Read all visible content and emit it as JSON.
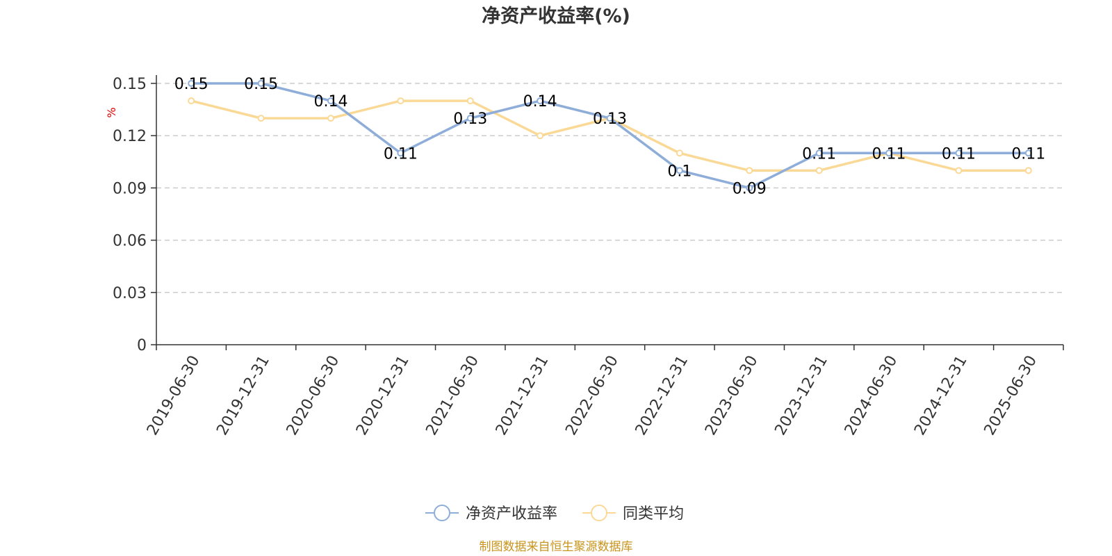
{
  "chart_data": {
    "type": "line",
    "title": "净资产收益率(%)",
    "ylabel": "%",
    "xlabel": "",
    "categories": [
      "2019-06-30",
      "2019-12-31",
      "2020-06-30",
      "2020-12-31",
      "2021-06-30",
      "2021-12-31",
      "2022-06-30",
      "2022-12-31",
      "2023-06-30",
      "2023-12-31",
      "2024-06-30",
      "2024-12-31",
      "2025-06-30"
    ],
    "series": [
      {
        "name": "净资产收益率",
        "color": "#8eadd8",
        "values": [
          0.15,
          0.15,
          0.14,
          0.11,
          0.13,
          0.14,
          0.13,
          0.1,
          0.09,
          0.11,
          0.11,
          0.11,
          0.11
        ],
        "data_labels": [
          "0.15",
          "0.15",
          "0.14",
          "0.11",
          "0.13",
          "0.14",
          "0.13",
          "0.1",
          "0.09",
          "0.11",
          "0.11",
          "0.11",
          "0.11"
        ]
      },
      {
        "name": "同类平均",
        "color": "#fad997",
        "values": [
          0.14,
          0.13,
          0.13,
          0.14,
          0.14,
          0.12,
          0.13,
          0.11,
          0.1,
          0.1,
          0.11,
          0.1,
          0.1
        ]
      }
    ],
    "ylim": [
      0,
      0.15
    ],
    "yticks": [
      "0",
      "0.03",
      "0.06",
      "0.09",
      "0.12",
      "0.15"
    ],
    "grid": true,
    "legend_position": "bottom-center"
  },
  "footer": {
    "source": "制图数据来自恒生聚源数据库"
  }
}
